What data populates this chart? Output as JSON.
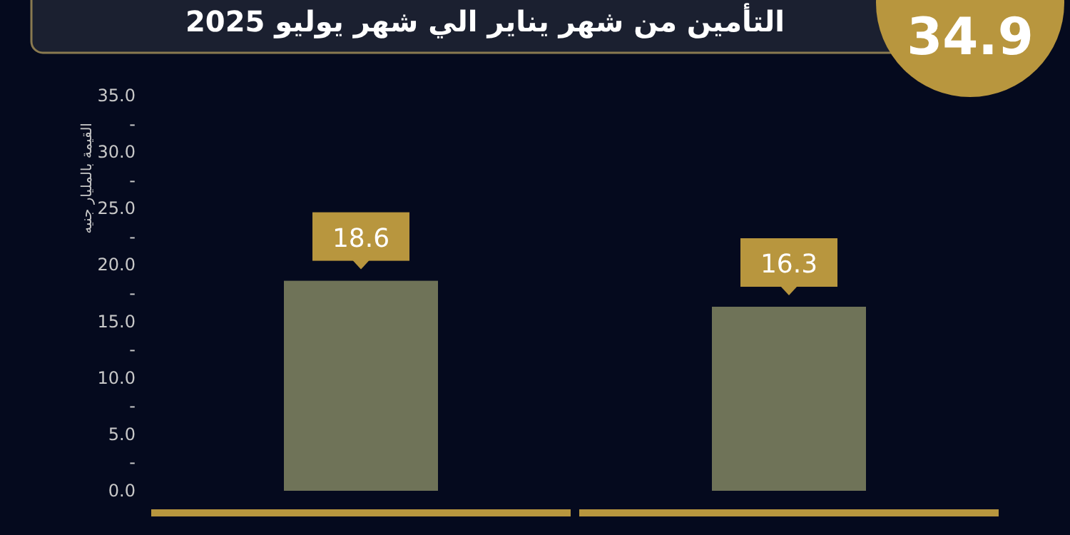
{
  "chart_data": {
    "type": "bar",
    "title": "التأمين من شهر  يناير الي شهر يوليو 2025",
    "ylabel": "القيمة بالمليار جنيه",
    "annotations": [
      "34.9"
    ],
    "categories": [
      null,
      null
    ],
    "values": [
      18.6,
      16.3
    ],
    "color": "#6f7358",
    "data_labels": true,
    "ylim": [
      0,
      35
    ],
    "yticks": [
      {
        "value": 0,
        "label": "0.0"
      },
      {
        "value": 2.5,
        "label": "-"
      },
      {
        "value": 5,
        "label": "5.0"
      },
      {
        "value": 7.5,
        "label": "-"
      },
      {
        "value": 10,
        "label": "10.0"
      },
      {
        "value": 12.5,
        "label": "-"
      },
      {
        "value": 15,
        "label": "15.0"
      },
      {
        "value": 17.5,
        "label": "-"
      },
      {
        "value": 20,
        "label": "20.0"
      },
      {
        "value": 22.5,
        "label": "-"
      },
      {
        "value": 25,
        "label": "25.0"
      },
      {
        "value": 27.5,
        "label": "-"
      },
      {
        "value": 30,
        "label": "30.0"
      },
      {
        "value": 32.5,
        "label": "-"
      },
      {
        "value": 35,
        "label": "35.0"
      }
    ]
  }
}
